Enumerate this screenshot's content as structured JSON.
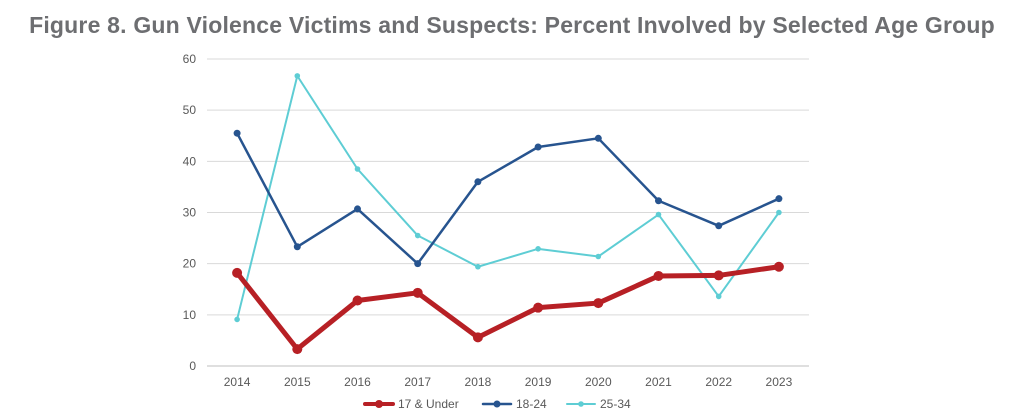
{
  "title": "Figure 8. Gun Violence Victims and Suspects: Percent Involved by Selected Age Group",
  "chart_data": {
    "type": "line",
    "x": [
      "2014",
      "2015",
      "2016",
      "2017",
      "2018",
      "2019",
      "2020",
      "2021",
      "2022",
      "2023"
    ],
    "ylim": [
      0,
      60
    ],
    "yticks": [
      0,
      10,
      20,
      30,
      40,
      50,
      60
    ],
    "grid": true,
    "legend": "bottom",
    "series": [
      {
        "name": "17 & Under",
        "color": "#b72025",
        "values": [
          18.2,
          3.3,
          12.8,
          14.3,
          5.6,
          11.4,
          12.3,
          17.6,
          17.7,
          19.4
        ]
      },
      {
        "name": "18-24",
        "color": "#27548f",
        "values": [
          45.5,
          23.3,
          30.7,
          20.0,
          36.0,
          42.8,
          44.5,
          32.3,
          27.4,
          32.7
        ]
      },
      {
        "name": "25-34",
        "color": "#5ecdd4",
        "values": [
          9.1,
          56.7,
          38.5,
          25.5,
          19.4,
          22.9,
          21.4,
          29.6,
          13.6,
          30.0
        ]
      }
    ]
  }
}
